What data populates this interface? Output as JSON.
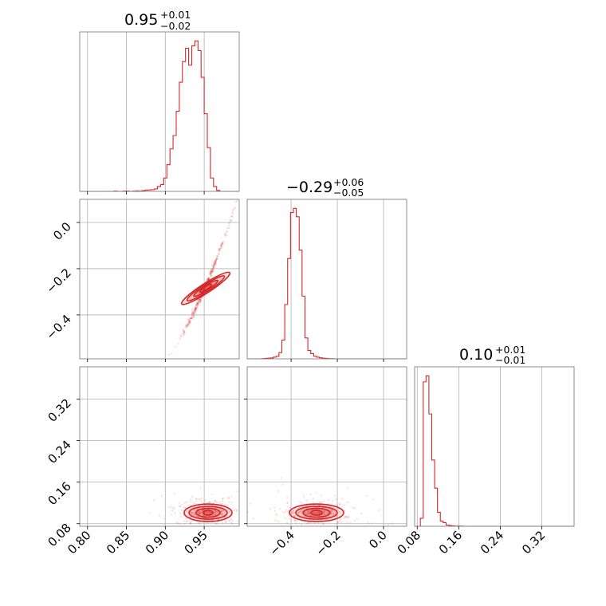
{
  "colors": {
    "series": "#d62728",
    "frame": "#808080",
    "grid": "#b0b0b0"
  },
  "chart_data": [
    {
      "type": "histogram",
      "panel": "p1-hist",
      "title": {
        "value": "0.95",
        "plus": "+0.01",
        "minus": "−0.02"
      },
      "x_range": [
        0.79,
        0.995
      ],
      "x_ticks": [
        0.8,
        0.85,
        0.9,
        0.95
      ],
      "x_tick_labels": [
        "0.80",
        "0.85",
        "0.90",
        "0.95"
      ],
      "grid": true,
      "bins": {
        "start": 0.79,
        "width": 0.004,
        "counts": [
          0,
          0,
          0,
          0,
          0,
          0,
          0,
          0,
          0,
          0,
          0,
          1,
          0,
          0,
          1,
          1,
          0,
          1,
          2,
          1,
          3,
          5,
          6,
          7,
          10,
          20,
          28,
          55,
          110,
          175,
          230,
          330,
          450,
          535,
          590,
          520,
          600,
          620,
          580,
          470,
          320,
          180,
          55,
          20,
          4,
          0,
          0,
          0,
          0,
          0,
          0,
          0
        ]
      }
    },
    {
      "type": "scatter",
      "panel": "p2-scatter",
      "x_range": [
        0.79,
        0.995
      ],
      "y_range": [
        -0.59,
        0.1
      ],
      "x_ticks": [
        0.8,
        0.85,
        0.9,
        0.95
      ],
      "y_ticks": [
        0.0,
        -0.2,
        -0.4
      ],
      "y_tick_labels": [
        "0.0",
        "−0.2",
        "−0.4"
      ],
      "grid": true,
      "relation": "y = -0.29 + 7.8*(x-0.95) + 30*(x-0.95)^2",
      "contour_center": [
        0.952,
        -0.285
      ]
    },
    {
      "type": "histogram",
      "panel": "p3-hist",
      "title": {
        "value": "−0.29",
        "plus": "+0.06",
        "minus": "−0.05"
      },
      "x_range": [
        -0.59,
        0.1
      ],
      "x_ticks": [
        -0.4,
        -0.2,
        0.0
      ],
      "x_tick_labels": [
        "−0.4",
        "−0.2",
        "0.0"
      ],
      "grid": true,
      "bins": {
        "start": -0.59,
        "width": 0.0125,
        "counts": [
          0,
          0,
          0,
          0,
          0,
          1,
          2,
          3,
          4,
          8,
          12,
          30,
          90,
          260,
          480,
          700,
          720,
          680,
          520,
          300,
          100,
          40,
          25,
          12,
          8,
          5,
          3,
          2,
          1,
          1,
          0,
          0,
          0,
          0,
          0,
          0,
          0,
          0,
          0,
          0,
          0,
          0,
          0,
          0,
          0,
          0,
          0,
          0,
          0,
          0,
          0,
          0,
          0,
          0,
          0,
          0
        ]
      }
    },
    {
      "type": "scatter",
      "panel": "p4-scatter",
      "x_range": [
        0.79,
        0.995
      ],
      "y_range": [
        0.075,
        0.382
      ],
      "x_ticks": [
        0.8,
        0.85,
        0.9,
        0.95
      ],
      "y_ticks": [
        0.08,
        0.16,
        0.24,
        0.32
      ],
      "y_tick_labels": [
        "0.08",
        "0.16",
        "0.24",
        "0.32"
      ],
      "grid": true,
      "contour_center": [
        0.955,
        0.101
      ]
    },
    {
      "type": "scatter",
      "panel": "p5-scatter",
      "x_range": [
        -0.59,
        0.1
      ],
      "y_range": [
        0.075,
        0.382
      ],
      "x_ticks": [
        -0.4,
        -0.2,
        0.0
      ],
      "y_ticks": [
        0.08,
        0.16,
        0.24,
        0.32
      ],
      "grid": true,
      "contour_center": [
        -0.29,
        0.101
      ]
    },
    {
      "type": "histogram",
      "panel": "p6-hist",
      "title": {
        "value": "0.10",
        "plus": "+0.01",
        "minus": "−0.01"
      },
      "x_range": [
        0.075,
        0.382
      ],
      "x_ticks": [
        0.08,
        0.16,
        0.24,
        0.32
      ],
      "x_tick_labels": [
        "0.08",
        "0.16",
        "0.24",
        "0.32"
      ],
      "grid": true,
      "bins": {
        "start": 0.075,
        "width": 0.0055,
        "counts": [
          0,
          0,
          40,
          720,
          750,
          560,
          330,
          190,
          70,
          25,
          18,
          6,
          4,
          2,
          1,
          1,
          1,
          0,
          0,
          0,
          0,
          0,
          0,
          0,
          0,
          0,
          0,
          0,
          0,
          0,
          0,
          0,
          0,
          0,
          0,
          0,
          0,
          0,
          0,
          0,
          0,
          0,
          0,
          0,
          0,
          0,
          0,
          0,
          0,
          0,
          0,
          0,
          0,
          0,
          0,
          0
        ]
      }
    }
  ]
}
